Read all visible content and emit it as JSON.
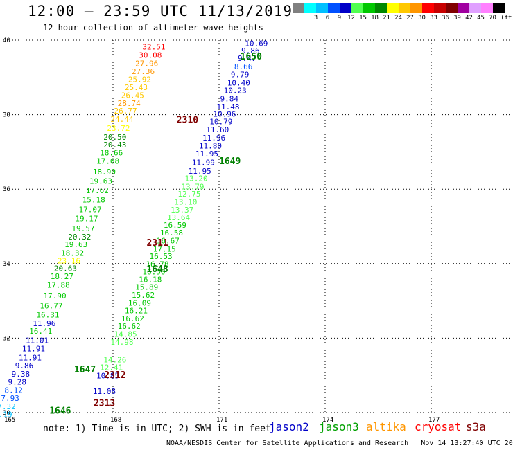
{
  "header": {
    "title": "12:00 – 23:59 UTC 11/13/2019",
    "subtitle": "12 hour collection of altimeter wave heights"
  },
  "colorbar": {
    "unit_label": "(ft)",
    "bins": [
      {
        "label": "",
        "color": "#808080"
      },
      {
        "label": "3",
        "color": "#00ffff"
      },
      {
        "label": "6",
        "color": "#00c0ff"
      },
      {
        "label": "9",
        "color": "#0050ff"
      },
      {
        "label": "12",
        "color": "#0000c8"
      },
      {
        "label": "15",
        "color": "#50ff50"
      },
      {
        "label": "18",
        "color": "#00c800"
      },
      {
        "label": "21",
        "color": "#008800"
      },
      {
        "label": "24",
        "color": "#ffff00"
      },
      {
        "label": "27",
        "color": "#ffc800"
      },
      {
        "label": "30",
        "color": "#ff9600"
      },
      {
        "label": "33",
        "color": "#ff0000"
      },
      {
        "label": "36",
        "color": "#c80000"
      },
      {
        "label": "39",
        "color": "#800000"
      },
      {
        "label": "42",
        "color": "#a000a0"
      },
      {
        "label": "45",
        "color": "#e0a0ff"
      },
      {
        "label": "70",
        "color": "#ff80ff"
      },
      {
        "label": "",
        "color": "#000000"
      }
    ]
  },
  "footer": {
    "note": "note: 1) Time is in UTC; 2) SWH is in feet",
    "satellites": [
      {
        "name": "jason2",
        "color": "#0000c8"
      },
      {
        "name": "jason3",
        "color": "#00a000"
      },
      {
        "name": "altika",
        "color": "#ff9600"
      },
      {
        "name": "cryosat",
        "color": "#ff0000"
      },
      {
        "name": "s3a",
        "color": "#800000"
      }
    ],
    "credit": "NOAA/NESDIS Center for Satellite Applications and Research",
    "timestamp": "Nov 14 13:27:40 UTC 2019"
  },
  "chart_data": {
    "type": "scatter",
    "xlim": [
      165,
      180
    ],
    "ylim": [
      30,
      40
    ],
    "x_ticks": [
      "165",
      "168",
      "171",
      "174",
      "177"
    ],
    "y_ticks": [
      "30",
      "32",
      "34",
      "36",
      "38",
      "40"
    ],
    "grid": "dotted",
    "pass_labels": [
      {
        "text": "1650",
        "lon": 171.6,
        "lat": 39.55,
        "color": "#008000"
      },
      {
        "text": "2310",
        "lon": 169.8,
        "lat": 37.85,
        "color": "#800000"
      },
      {
        "text": "1649",
        "lon": 171.0,
        "lat": 36.75,
        "color": "#008000"
      },
      {
        "text": "2311",
        "lon": 168.95,
        "lat": 34.55,
        "color": "#800000"
      },
      {
        "text": "1648",
        "lon": 168.95,
        "lat": 33.85,
        "color": "#008000"
      },
      {
        "text": "1647",
        "lon": 166.9,
        "lat": 31.15,
        "color": "#008000"
      },
      {
        "text": "2312",
        "lon": 167.75,
        "lat": 31.0,
        "color": "#800000"
      },
      {
        "text": "2313",
        "lon": 167.45,
        "lat": 30.25,
        "color": "#800000"
      },
      {
        "text": "1646",
        "lon": 166.2,
        "lat": 30.05,
        "color": "#008000"
      }
    ],
    "points": [
      {
        "lon": 168.83,
        "lat": 39.82,
        "v": "32.51",
        "c": "#ff0000"
      },
      {
        "lon": 168.73,
        "lat": 39.6,
        "v": "30.08",
        "c": "#ff0000"
      },
      {
        "lon": 168.63,
        "lat": 39.38,
        "v": "27.96",
        "c": "#ff9600"
      },
      {
        "lon": 168.53,
        "lat": 39.16,
        "v": "27.36",
        "c": "#ff9600"
      },
      {
        "lon": 168.43,
        "lat": 38.95,
        "v": "25.92",
        "c": "#ffc800"
      },
      {
        "lon": 168.33,
        "lat": 38.74,
        "v": "25.43",
        "c": "#ffc800"
      },
      {
        "lon": 168.23,
        "lat": 38.52,
        "v": "26.45",
        "c": "#ffc800"
      },
      {
        "lon": 168.13,
        "lat": 38.31,
        "v": "28.74",
        "c": "#ff9600"
      },
      {
        "lon": 168.03,
        "lat": 38.1,
        "v": "26.77",
        "c": "#ffc800"
      },
      {
        "lon": 167.93,
        "lat": 37.88,
        "v": "24.44",
        "c": "#ffc800"
      },
      {
        "lon": 167.83,
        "lat": 37.64,
        "v": "23.72",
        "c": "#ffff00"
      },
      {
        "lon": 167.73,
        "lat": 37.4,
        "v": "20.50",
        "c": "#008800"
      },
      {
        "lon": 167.73,
        "lat": 37.19,
        "v": "20.43",
        "c": "#008800"
      },
      {
        "lon": 167.63,
        "lat": 36.98,
        "v": "18.66",
        "c": "#00c800"
      },
      {
        "lon": 167.53,
        "lat": 36.76,
        "v": "17.68",
        "c": "#00c800"
      },
      {
        "lon": 167.43,
        "lat": 36.47,
        "v": "18.90",
        "c": "#00c800"
      },
      {
        "lon": 167.33,
        "lat": 36.22,
        "v": "19.63",
        "c": "#00c800"
      },
      {
        "lon": 167.23,
        "lat": 35.97,
        "v": "17.62",
        "c": "#00c800"
      },
      {
        "lon": 167.13,
        "lat": 35.72,
        "v": "15.18",
        "c": "#00c800"
      },
      {
        "lon": 167.03,
        "lat": 35.46,
        "v": "17.07",
        "c": "#00c800"
      },
      {
        "lon": 166.93,
        "lat": 35.21,
        "v": "19.17",
        "c": "#00c800"
      },
      {
        "lon": 166.83,
        "lat": 34.94,
        "v": "19.57",
        "c": "#00c800"
      },
      {
        "lon": 166.73,
        "lat": 34.72,
        "v": "20.32",
        "c": "#008800"
      },
      {
        "lon": 166.63,
        "lat": 34.52,
        "v": "19.63",
        "c": "#00c800"
      },
      {
        "lon": 166.53,
        "lat": 34.28,
        "v": "18.32",
        "c": "#00c800"
      },
      {
        "lon": 166.43,
        "lat": 34.08,
        "v": "23.16",
        "c": "#ffff00"
      },
      {
        "lon": 166.33,
        "lat": 33.88,
        "v": "20.63",
        "c": "#008800"
      },
      {
        "lon": 166.23,
        "lat": 33.66,
        "v": "18.27",
        "c": "#00c800"
      },
      {
        "lon": 166.13,
        "lat": 33.43,
        "v": "17.88",
        "c": "#00c800"
      },
      {
        "lon": 166.03,
        "lat": 33.14,
        "v": "17.90",
        "c": "#00c800"
      },
      {
        "lon": 165.93,
        "lat": 32.87,
        "v": "16.77",
        "c": "#00c800"
      },
      {
        "lon": 165.83,
        "lat": 32.63,
        "v": "16.31",
        "c": "#00c800"
      },
      {
        "lon": 165.73,
        "lat": 32.4,
        "v": "11.96",
        "c": "#0000c8"
      },
      {
        "lon": 165.63,
        "lat": 32.19,
        "v": "16.41",
        "c": "#00c800"
      },
      {
        "lon": 165.53,
        "lat": 31.94,
        "v": "11.01",
        "c": "#0000c8"
      },
      {
        "lon": 165.43,
        "lat": 31.72,
        "v": "11.91",
        "c": "#0000c8"
      },
      {
        "lon": 165.33,
        "lat": 31.48,
        "v": "11.91",
        "c": "#0000c8"
      },
      {
        "lon": 165.23,
        "lat": 31.26,
        "v": "9.86",
        "c": "#0000c8"
      },
      {
        "lon": 165.13,
        "lat": 31.04,
        "v": "9.38",
        "c": "#0000c8"
      },
      {
        "lon": 165.03,
        "lat": 30.83,
        "v": "9.28",
        "c": "#0000c8"
      },
      {
        "lon": 164.93,
        "lat": 30.6,
        "v": "8.12",
        "c": "#0050ff"
      },
      {
        "lon": 164.83,
        "lat": 30.39,
        "v": "7.93",
        "c": "#0050ff"
      },
      {
        "lon": 164.73,
        "lat": 30.17,
        "v": "7.32",
        "c": "#00c0ff"
      },
      {
        "lon": 164.63,
        "lat": 29.95,
        "v": "7.19",
        "c": "#00c0ff"
      },
      {
        "lon": 171.73,
        "lat": 39.92,
        "v": "10.69",
        "c": "#0000c8"
      },
      {
        "lon": 171.63,
        "lat": 39.72,
        "v": "9.86",
        "c": "#0000c8"
      },
      {
        "lon": 171.53,
        "lat": 39.52,
        "v": "9.47",
        "c": "#0000c8"
      },
      {
        "lon": 171.43,
        "lat": 39.29,
        "v": "8.66",
        "c": "#0050ff"
      },
      {
        "lon": 171.33,
        "lat": 39.08,
        "v": "9.79",
        "c": "#0000c8"
      },
      {
        "lon": 171.23,
        "lat": 38.86,
        "v": "10.40",
        "c": "#0000c8"
      },
      {
        "lon": 171.13,
        "lat": 38.65,
        "v": "10.23",
        "c": "#0000c8"
      },
      {
        "lon": 171.03,
        "lat": 38.43,
        "v": "9.84",
        "c": "#0000c8"
      },
      {
        "lon": 170.93,
        "lat": 38.22,
        "v": "11.48",
        "c": "#0000c8"
      },
      {
        "lon": 170.83,
        "lat": 38.02,
        "v": "10.96",
        "c": "#0000c8"
      },
      {
        "lon": 170.73,
        "lat": 37.82,
        "v": "10.79",
        "c": "#0000c8"
      },
      {
        "lon": 170.63,
        "lat": 37.6,
        "v": "11.60",
        "c": "#0000c8"
      },
      {
        "lon": 170.53,
        "lat": 37.38,
        "v": "11.96",
        "c": "#0000c8"
      },
      {
        "lon": 170.43,
        "lat": 37.17,
        "v": "11.80",
        "c": "#0000c8"
      },
      {
        "lon": 170.33,
        "lat": 36.95,
        "v": "11.95",
        "c": "#0000c8"
      },
      {
        "lon": 170.23,
        "lat": 36.72,
        "v": "11.99",
        "c": "#0000c8"
      },
      {
        "lon": 170.13,
        "lat": 36.49,
        "v": "11.95",
        "c": "#0000c8"
      },
      {
        "lon": 170.03,
        "lat": 36.29,
        "v": "13.20",
        "c": "#50ff50"
      },
      {
        "lon": 169.93,
        "lat": 36.07,
        "v": "13.79",
        "c": "#50ff50"
      },
      {
        "lon": 169.83,
        "lat": 35.87,
        "v": "12.75",
        "c": "#50ff50"
      },
      {
        "lon": 169.73,
        "lat": 35.66,
        "v": "13.10",
        "c": "#50ff50"
      },
      {
        "lon": 169.63,
        "lat": 35.45,
        "v": "13.37",
        "c": "#50ff50"
      },
      {
        "lon": 169.53,
        "lat": 35.24,
        "v": "13.64",
        "c": "#50ff50"
      },
      {
        "lon": 169.43,
        "lat": 35.04,
        "v": "16.59",
        "c": "#00c800"
      },
      {
        "lon": 169.33,
        "lat": 34.83,
        "v": "16.58",
        "c": "#00c800"
      },
      {
        "lon": 169.23,
        "lat": 34.62,
        "v": "16.67",
        "c": "#00c800"
      },
      {
        "lon": 169.13,
        "lat": 34.4,
        "v": "17.15",
        "c": "#00c800"
      },
      {
        "lon": 169.03,
        "lat": 34.2,
        "v": "16.53",
        "c": "#00c800"
      },
      {
        "lon": 168.93,
        "lat": 33.99,
        "v": "16.78",
        "c": "#00c800"
      },
      {
        "lon": 168.83,
        "lat": 33.78,
        "v": "16.50",
        "c": "#00c800"
      },
      {
        "lon": 168.73,
        "lat": 33.58,
        "v": "16.18",
        "c": "#00c800"
      },
      {
        "lon": 168.63,
        "lat": 33.37,
        "v": "15.89",
        "c": "#00c800"
      },
      {
        "lon": 168.53,
        "lat": 33.16,
        "v": "15.62",
        "c": "#00c800"
      },
      {
        "lon": 168.43,
        "lat": 32.95,
        "v": "16.09",
        "c": "#00c800"
      },
      {
        "lon": 168.33,
        "lat": 32.74,
        "v": "16.21",
        "c": "#00c800"
      },
      {
        "lon": 168.23,
        "lat": 32.53,
        "v": "16.62",
        "c": "#00c800"
      },
      {
        "lon": 168.13,
        "lat": 32.32,
        "v": "16.62",
        "c": "#00c800"
      },
      {
        "lon": 168.03,
        "lat": 32.11,
        "v": "14.85",
        "c": "#50ff50"
      },
      {
        "lon": 167.93,
        "lat": 31.9,
        "v": "14.98",
        "c": "#50ff50"
      },
      {
        "lon": 167.73,
        "lat": 31.42,
        "v": "14.26",
        "c": "#50ff50"
      },
      {
        "lon": 167.63,
        "lat": 31.22,
        "v": "12.41",
        "c": "#50ff50"
      },
      {
        "lon": 167.53,
        "lat": 30.99,
        "v": "10.85",
        "c": "#0000c8"
      },
      {
        "lon": 167.43,
        "lat": 30.58,
        "v": "11.08",
        "c": "#0000c8"
      }
    ]
  }
}
